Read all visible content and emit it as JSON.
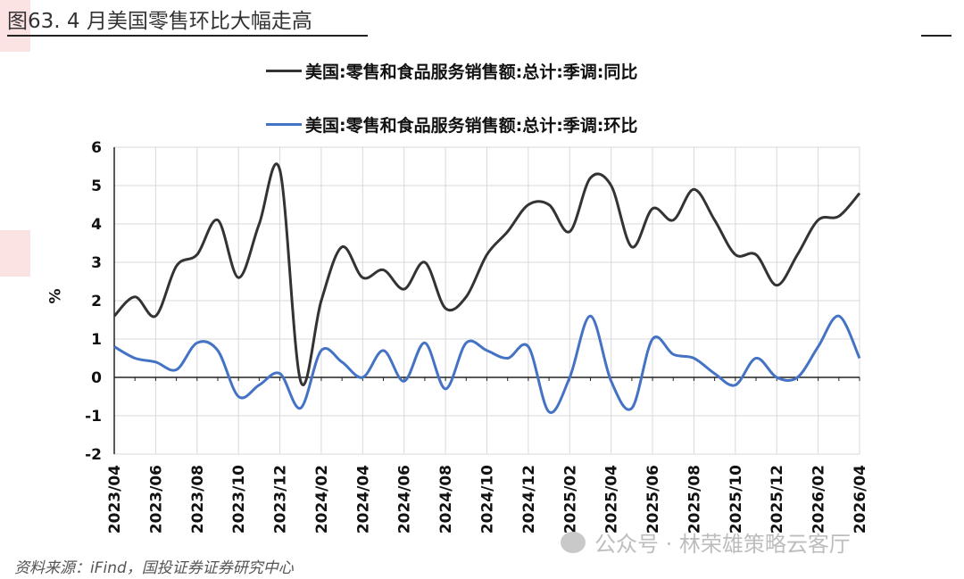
{
  "header": {
    "title": "图63. 4 月美国零售环比大幅走高"
  },
  "footer": {
    "source": "资料来源：iFind，国投证券证券研究中心"
  },
  "watermark": {
    "text": "公众号 · 林荣雄策略云客厅"
  },
  "colors": {
    "yoy": "#333333",
    "mom": "#4472c4",
    "grid": "#d9d9d9",
    "axis": "#222222"
  },
  "chart_data": {
    "type": "line",
    "ylabel": "%",
    "ylim": [
      -2,
      6
    ],
    "yticks": [
      "6",
      "5",
      "4",
      "3",
      "2",
      "1",
      "0",
      "-1",
      "-2"
    ],
    "xtick_labels": [
      "2023/04",
      "2023/06",
      "2023/08",
      "2023/10",
      "2023/12",
      "2024/02",
      "2024/04",
      "2024/06",
      "2024/08",
      "2024/10",
      "2024/12",
      "2025/02",
      "2025/04",
      "2025/06",
      "2025/08",
      "2025/10",
      "2025/12",
      "2026/02",
      "2026/04"
    ],
    "x": [
      "2023/04",
      "2023/05",
      "2023/06",
      "2023/07",
      "2023/08",
      "2023/09",
      "2023/10",
      "2023/11",
      "2023/12",
      "2024/01",
      "2024/02",
      "2024/03",
      "2024/04",
      "2024/05",
      "2024/06",
      "2024/07",
      "2024/08",
      "2024/09",
      "2024/10",
      "2024/11",
      "2024/12",
      "2025/01",
      "2025/02",
      "2025/03",
      "2025/04",
      "2025/05",
      "2025/06",
      "2025/07",
      "2025/08",
      "2025/09",
      "2025/10",
      "2025/11",
      "2025/12",
      "2026/01",
      "2026/02",
      "2026/03",
      "2026/04"
    ],
    "legend_position": "top",
    "series": [
      {
        "name": "美国:零售和食品服务销售额:总计:季调:同比",
        "values": [
          1.6,
          2.1,
          1.6,
          2.9,
          3.2,
          4.1,
          2.6,
          4.0,
          5.4,
          -0.1,
          2.0,
          3.4,
          2.6,
          2.8,
          2.3,
          3.0,
          1.8,
          2.1,
          3.2,
          3.8,
          4.5,
          4.5,
          3.8,
          5.2,
          5.0,
          3.4,
          4.4,
          4.1,
          4.9,
          4.1,
          3.2,
          3.2,
          2.4,
          3.2,
          4.1,
          4.2,
          4.8
        ]
      },
      {
        "name": "美国:零售和食品服务销售额:总计:季调:环比",
        "values": [
          0.8,
          0.5,
          0.4,
          0.2,
          0.9,
          0.7,
          -0.5,
          -0.2,
          0.1,
          -0.8,
          0.7,
          0.4,
          0.0,
          0.7,
          -0.1,
          0.9,
          -0.3,
          0.9,
          0.7,
          0.5,
          0.8,
          -0.9,
          0.0,
          1.6,
          -0.1,
          -0.8,
          1.0,
          0.6,
          0.5,
          0.1,
          -0.2,
          0.5,
          0.0,
          0.0,
          0.8,
          1.6,
          0.5
        ]
      }
    ]
  }
}
